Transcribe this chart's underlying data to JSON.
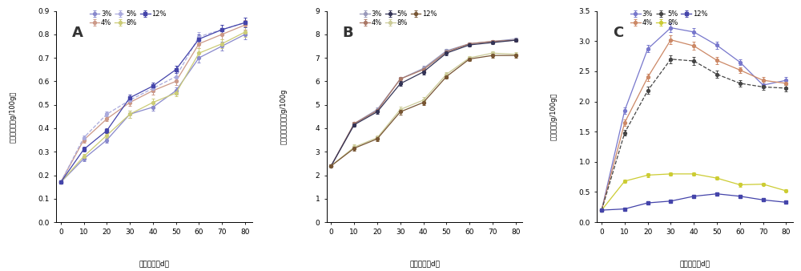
{
  "x": [
    0,
    10,
    20,
    30,
    40,
    50,
    60,
    70,
    80
  ],
  "background_color": "#ffffff",
  "panel_A": {
    "label": "A",
    "ylabel": "氨基酸态氮（g/100g）",
    "xlabel": "发酵时间（d）",
    "ylim": [
      0,
      0.9
    ],
    "yticks": [
      0.0,
      0.1,
      0.2,
      0.3,
      0.4,
      0.5,
      0.6,
      0.7,
      0.8,
      0.9
    ],
    "series": [
      {
        "label": "3%",
        "color": "#8888cc",
        "marker": "o",
        "ls": "-",
        "data": [
          0.17,
          0.27,
          0.35,
          0.46,
          0.49,
          0.56,
          0.7,
          0.75,
          0.8
        ],
        "err": [
          0.005,
          0.01,
          0.01,
          0.015,
          0.015,
          0.015,
          0.02,
          0.02,
          0.02
        ]
      },
      {
        "label": "4%",
        "color": "#cc9988",
        "marker": "o",
        "ls": "-",
        "data": [
          0.17,
          0.35,
          0.44,
          0.51,
          0.56,
          0.6,
          0.76,
          0.8,
          0.84
        ],
        "err": [
          0.005,
          0.01,
          0.01,
          0.015,
          0.015,
          0.015,
          0.02,
          0.02,
          0.02
        ]
      },
      {
        "label": "5%",
        "color": "#aaaadd",
        "marker": "o",
        "ls": "--",
        "data": [
          0.17,
          0.36,
          0.46,
          0.52,
          0.57,
          0.62,
          0.79,
          0.82,
          0.85
        ],
        "err": [
          0.005,
          0.01,
          0.01,
          0.015,
          0.015,
          0.015,
          0.02,
          0.02,
          0.02
        ]
      },
      {
        "label": "8%",
        "color": "#cccc77",
        "marker": "o",
        "ls": "-",
        "data": [
          0.17,
          0.28,
          0.37,
          0.46,
          0.51,
          0.55,
          0.72,
          0.76,
          0.81
        ],
        "err": [
          0.005,
          0.01,
          0.01,
          0.015,
          0.015,
          0.015,
          0.02,
          0.02,
          0.02
        ]
      },
      {
        "label": "12%",
        "color": "#4444aa",
        "marker": "s",
        "ls": "-",
        "data": [
          0.17,
          0.31,
          0.39,
          0.53,
          0.58,
          0.65,
          0.78,
          0.82,
          0.85
        ],
        "err": [
          0.005,
          0.01,
          0.01,
          0.015,
          0.015,
          0.015,
          0.02,
          0.02,
          0.02
        ]
      }
    ]
  },
  "panel_B": {
    "label": "B",
    "ylabel": "水溶性蛋白质（）g/100g",
    "xlabel": "发酵时间（d）",
    "ylim": [
      0,
      9
    ],
    "yticks": [
      0,
      1,
      2,
      3,
      4,
      5,
      6,
      7,
      8,
      9
    ],
    "series": [
      {
        "label": "3%",
        "color": "#9999bb",
        "marker": "o",
        "ls": "-",
        "data": [
          2.4,
          4.2,
          4.8,
          6.1,
          6.55,
          7.3,
          7.6,
          7.7,
          7.8
        ],
        "err": [
          0.05,
          0.08,
          0.08,
          0.1,
          0.1,
          0.08,
          0.06,
          0.06,
          0.06
        ]
      },
      {
        "label": "4%",
        "color": "#aa7766",
        "marker": "o",
        "ls": "-",
        "data": [
          2.4,
          4.2,
          4.75,
          6.1,
          6.5,
          7.25,
          7.6,
          7.7,
          7.75
        ],
        "err": [
          0.05,
          0.08,
          0.08,
          0.1,
          0.1,
          0.08,
          0.06,
          0.06,
          0.06
        ]
      },
      {
        "label": "5%",
        "color": "#333355",
        "marker": "o",
        "ls": "-",
        "data": [
          2.4,
          4.15,
          4.7,
          5.9,
          6.4,
          7.2,
          7.55,
          7.65,
          7.75
        ],
        "err": [
          0.05,
          0.08,
          0.08,
          0.1,
          0.1,
          0.08,
          0.06,
          0.06,
          0.06
        ]
      },
      {
        "label": "8%",
        "color": "#cccc99",
        "marker": "o",
        "ls": "-",
        "data": [
          2.4,
          3.2,
          3.6,
          4.8,
          5.2,
          6.3,
          7.0,
          7.2,
          7.15
        ],
        "err": [
          0.05,
          0.1,
          0.1,
          0.12,
          0.12,
          0.1,
          0.08,
          0.08,
          0.08
        ]
      },
      {
        "label": "12%",
        "color": "#775533",
        "marker": "o",
        "ls": "-",
        "data": [
          2.4,
          3.15,
          3.55,
          4.7,
          5.1,
          6.2,
          6.95,
          7.1,
          7.1
        ],
        "err": [
          0.05,
          0.1,
          0.1,
          0.12,
          0.12,
          0.1,
          0.08,
          0.08,
          0.08
        ]
      }
    ]
  },
  "panel_C": {
    "label": "C",
    "ylabel": "豆酱含量（g/100g）",
    "xlabel": "发酵时间（d）",
    "ylim": [
      0,
      3.5
    ],
    "yticks": [
      0.0,
      0.5,
      1.0,
      1.5,
      2.0,
      2.5,
      3.0,
      3.5
    ],
    "series": [
      {
        "label": "3%",
        "color": "#7777cc",
        "marker": "o",
        "ls": "-",
        "data": [
          0.2,
          1.85,
          2.87,
          3.22,
          3.15,
          2.93,
          2.65,
          2.27,
          2.35
        ],
        "err": [
          0.01,
          0.05,
          0.06,
          0.07,
          0.07,
          0.06,
          0.05,
          0.05,
          0.05
        ]
      },
      {
        "label": "4%",
        "color": "#cc8866",
        "marker": "o",
        "ls": "-",
        "data": [
          0.2,
          1.65,
          2.4,
          3.02,
          2.92,
          2.68,
          2.52,
          2.35,
          2.3
        ],
        "err": [
          0.01,
          0.05,
          0.06,
          0.07,
          0.07,
          0.06,
          0.05,
          0.05,
          0.05
        ]
      },
      {
        "label": "5%",
        "color": "#444444",
        "marker": "o",
        "ls": "--",
        "data": [
          0.2,
          1.48,
          2.18,
          2.7,
          2.67,
          2.45,
          2.3,
          2.24,
          2.22
        ],
        "err": [
          0.01,
          0.05,
          0.06,
          0.07,
          0.07,
          0.06,
          0.05,
          0.05,
          0.05
        ]
      },
      {
        "label": "8%",
        "color": "#cccc33",
        "marker": "o",
        "ls": "-",
        "data": [
          0.2,
          0.68,
          0.78,
          0.8,
          0.8,
          0.73,
          0.62,
          0.63,
          0.52
        ],
        "err": [
          0.01,
          0.03,
          0.03,
          0.03,
          0.03,
          0.03,
          0.03,
          0.02,
          0.02
        ]
      },
      {
        "label": "12%",
        "color": "#4444aa",
        "marker": "s",
        "ls": "-",
        "data": [
          0.2,
          0.22,
          0.32,
          0.35,
          0.43,
          0.47,
          0.43,
          0.37,
          0.33
        ],
        "err": [
          0.01,
          0.02,
          0.02,
          0.02,
          0.02,
          0.02,
          0.02,
          0.02,
          0.02
        ]
      }
    ]
  }
}
